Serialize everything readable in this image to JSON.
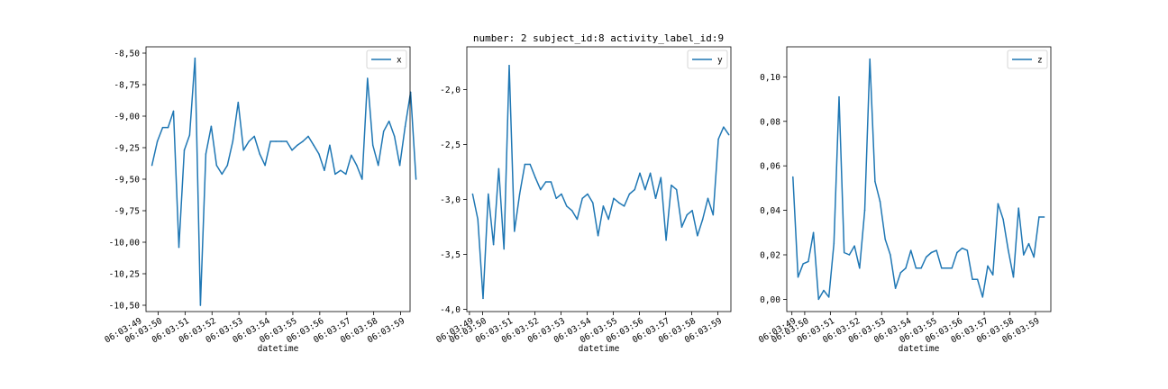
{
  "figure_title": "number: 2 subject_id:8 activity_label_id:9",
  "line_color": "#1f77b4",
  "chart_data": [
    {
      "type": "line",
      "title": "",
      "xlabel": "datetime",
      "ylabel": "",
      "legend": {
        "label": "x",
        "placement": "top-right"
      },
      "grid": false,
      "x_range": [
        "06:03:49.55",
        "06:03:59.35"
      ],
      "xlim": [
        49.55,
        59.35
      ],
      "ylim": [
        -10.55,
        -8.45
      ],
      "xticks": [
        {
          "t": 50,
          "label": "06:03:50"
        },
        {
          "t": 51,
          "label": "06:03:51"
        },
        {
          "t": 52,
          "label": "06:03:52"
        },
        {
          "t": 53,
          "label": "06:03:53"
        },
        {
          "t": 54,
          "label": "06:03:54"
        },
        {
          "t": 55,
          "label": "06:03:55"
        },
        {
          "t": 56,
          "label": "06:03:56"
        },
        {
          "t": 57,
          "label": "06:03:57"
        },
        {
          "t": 58,
          "label": "06:03:58"
        },
        {
          "t": 59,
          "label": "06:03:59"
        }
      ],
      "xtick_prefix_label": "06:03:49",
      "yticks": [
        {
          "v": -8.5,
          "label": "-8,50"
        },
        {
          "v": -8.75,
          "label": "-8,75"
        },
        {
          "v": -9.0,
          "label": "-9,00"
        },
        {
          "v": -9.25,
          "label": "-9,25"
        },
        {
          "v": -9.5,
          "label": "-9,50"
        },
        {
          "v": -9.75,
          "label": "-9,75"
        },
        {
          "v": -10.0,
          "label": "-10,00"
        },
        {
          "v": -10.25,
          "label": "-10,25"
        },
        {
          "v": -10.5,
          "label": "-10,50"
        }
      ],
      "series": [
        {
          "name": "x",
          "points": [
            [
              49.77,
              -9.39
            ],
            [
              49.97,
              -9.2
            ],
            [
              50.17,
              -9.09
            ],
            [
              50.37,
              -9.09
            ],
            [
              50.57,
              -8.96
            ],
            [
              50.77,
              -10.04
            ],
            [
              50.97,
              -9.27
            ],
            [
              51.17,
              -9.15
            ],
            [
              51.37,
              -8.54
            ],
            [
              51.57,
              -10.5
            ],
            [
              51.77,
              -9.3
            ],
            [
              51.97,
              -9.08
            ],
            [
              52.17,
              -9.39
            ],
            [
              52.37,
              -9.46
            ],
            [
              52.57,
              -9.39
            ],
            [
              52.77,
              -9.2
            ],
            [
              52.97,
              -8.89
            ],
            [
              53.17,
              -9.27
            ],
            [
              53.37,
              -9.2
            ],
            [
              53.57,
              -9.16
            ],
            [
              53.77,
              -9.3
            ],
            [
              53.97,
              -9.39
            ],
            [
              54.17,
              -9.2
            ],
            [
              54.37,
              -9.2
            ],
            [
              54.57,
              -9.2
            ],
            [
              54.77,
              -9.2
            ],
            [
              54.97,
              -9.27
            ],
            [
              55.17,
              -9.23
            ],
            [
              55.37,
              -9.2
            ],
            [
              55.57,
              -9.16
            ],
            [
              55.77,
              -9.23
            ],
            [
              55.97,
              -9.3
            ],
            [
              56.17,
              -9.43
            ],
            [
              56.37,
              -9.23
            ],
            [
              56.57,
              -9.46
            ],
            [
              56.77,
              -9.43
            ],
            [
              56.97,
              -9.46
            ],
            [
              57.17,
              -9.31
            ],
            [
              57.37,
              -9.39
            ],
            [
              57.57,
              -9.5
            ],
            [
              57.77,
              -8.7
            ],
            [
              57.97,
              -9.23
            ],
            [
              58.17,
              -9.39
            ],
            [
              58.37,
              -9.12
            ],
            [
              58.57,
              -9.04
            ],
            [
              58.77,
              -9.16
            ],
            [
              58.97,
              -9.39
            ],
            [
              59.17,
              -9.08
            ],
            [
              59.37,
              -8.81
            ],
            [
              59.57,
              -9.5
            ]
          ]
        }
      ]
    },
    {
      "type": "line",
      "title": "number: 2 subject_id:8 activity_label_id:9",
      "xlabel": "datetime",
      "ylabel": "",
      "legend": {
        "label": "y",
        "placement": "top-right"
      },
      "grid": false,
      "x_range": [
        "06:03:49.40",
        "06:03:59.50"
      ],
      "xlim": [
        49.4,
        59.5
      ],
      "ylim": [
        -4.02,
        -1.61
      ],
      "xticks": [
        {
          "t": 49.5,
          "label": "06:03:49"
        },
        {
          "t": 50,
          "label": "06:03:50"
        },
        {
          "t": 51,
          "label": "06:03:51"
        },
        {
          "t": 52,
          "label": "06:03:52"
        },
        {
          "t": 53,
          "label": "06:03:53"
        },
        {
          "t": 54,
          "label": "06:03:54"
        },
        {
          "t": 55,
          "label": "06:03:55"
        },
        {
          "t": 56,
          "label": "06:03:56"
        },
        {
          "t": 57,
          "label": "06:03:57"
        },
        {
          "t": 58,
          "label": "06:03:58"
        },
        {
          "t": 59,
          "label": "06:03:59"
        }
      ],
      "yticks": [
        {
          "v": -2.0,
          "label": "-2,0"
        },
        {
          "v": -2.5,
          "label": "-2,5"
        },
        {
          "v": -3.0,
          "label": "-3,0"
        },
        {
          "v": -3.5,
          "label": "-3,5"
        },
        {
          "v": -4.0,
          "label": "-4,0"
        }
      ],
      "series": [
        {
          "name": "y",
          "points": [
            [
              49.62,
              -2.95
            ],
            [
              49.82,
              -3.18
            ],
            [
              50.02,
              -3.9
            ],
            [
              50.22,
              -2.95
            ],
            [
              50.42,
              -3.41
            ],
            [
              50.62,
              -2.72
            ],
            [
              50.82,
              -3.45
            ],
            [
              51.02,
              -1.78
            ],
            [
              51.22,
              -3.29
            ],
            [
              51.42,
              -2.95
            ],
            [
              51.62,
              -2.68
            ],
            [
              51.82,
              -2.68
            ],
            [
              52.02,
              -2.8
            ],
            [
              52.22,
              -2.91
            ],
            [
              52.42,
              -2.84
            ],
            [
              52.62,
              -2.84
            ],
            [
              52.82,
              -2.99
            ],
            [
              53.02,
              -2.95
            ],
            [
              53.22,
              -3.06
            ],
            [
              53.42,
              -3.1
            ],
            [
              53.62,
              -3.18
            ],
            [
              53.82,
              -2.99
            ],
            [
              54.02,
              -2.95
            ],
            [
              54.22,
              -3.03
            ],
            [
              54.42,
              -3.33
            ],
            [
              54.62,
              -3.06
            ],
            [
              54.82,
              -3.18
            ],
            [
              55.02,
              -2.99
            ],
            [
              55.22,
              -3.03
            ],
            [
              55.42,
              -3.06
            ],
            [
              55.62,
              -2.95
            ],
            [
              55.82,
              -2.91
            ],
            [
              56.02,
              -2.76
            ],
            [
              56.22,
              -2.91
            ],
            [
              56.42,
              -2.76
            ],
            [
              56.62,
              -2.99
            ],
            [
              56.82,
              -2.8
            ],
            [
              57.02,
              -3.37
            ],
            [
              57.22,
              -2.87
            ],
            [
              57.42,
              -2.91
            ],
            [
              57.62,
              -3.25
            ],
            [
              57.82,
              -3.14
            ],
            [
              58.02,
              -3.1
            ],
            [
              58.22,
              -3.33
            ],
            [
              58.42,
              -3.18
            ],
            [
              58.62,
              -2.99
            ],
            [
              58.82,
              -3.14
            ],
            [
              59.02,
              -2.45
            ],
            [
              59.22,
              -2.34
            ],
            [
              59.42,
              -2.41
            ]
          ]
        }
      ]
    },
    {
      "type": "line",
      "title": "",
      "xlabel": "datetime",
      "ylabel": "",
      "legend": {
        "label": "z",
        "placement": "top-right"
      },
      "grid": false,
      "x_range": [
        "06:03:49.30",
        "06:03:59.60"
      ],
      "xlim": [
        49.3,
        59.6
      ],
      "ylim": [
        -0.0055,
        0.1135
      ],
      "xticks": [
        {
          "t": 49.5,
          "label": "06:03:49"
        },
        {
          "t": 50,
          "label": "06:03:50"
        },
        {
          "t": 51,
          "label": "06:03:51"
        },
        {
          "t": 52,
          "label": "06:03:52"
        },
        {
          "t": 53,
          "label": "06:03:53"
        },
        {
          "t": 54,
          "label": "06:03:54"
        },
        {
          "t": 55,
          "label": "06:03:55"
        },
        {
          "t": 56,
          "label": "06:03:56"
        },
        {
          "t": 57,
          "label": "06:03:57"
        },
        {
          "t": 58,
          "label": "06:03:58"
        },
        {
          "t": 59,
          "label": "06:03:59"
        }
      ],
      "yticks": [
        {
          "v": 0.1,
          "label": "0,10"
        },
        {
          "v": 0.08,
          "label": "0,08"
        },
        {
          "v": 0.06,
          "label": "0,06"
        },
        {
          "v": 0.04,
          "label": "0,04"
        },
        {
          "v": 0.02,
          "label": "0,02"
        },
        {
          "v": 0.0,
          "label": "0,00"
        }
      ],
      "series": [
        {
          "name": "z",
          "points": [
            [
              49.54,
              0.055
            ],
            [
              49.74,
              0.01
            ],
            [
              49.94,
              0.016
            ],
            [
              50.14,
              0.017
            ],
            [
              50.34,
              0.03
            ],
            [
              50.54,
              0.0
            ],
            [
              50.74,
              0.004
            ],
            [
              50.94,
              0.001
            ],
            [
              51.14,
              0.025
            ],
            [
              51.34,
              0.091
            ],
            [
              51.54,
              0.021
            ],
            [
              51.74,
              0.02
            ],
            [
              51.94,
              0.024
            ],
            [
              52.14,
              0.014
            ],
            [
              52.34,
              0.04
            ],
            [
              52.54,
              0.108
            ],
            [
              52.74,
              0.053
            ],
            [
              52.94,
              0.044
            ],
            [
              53.14,
              0.027
            ],
            [
              53.34,
              0.02
            ],
            [
              53.54,
              0.005
            ],
            [
              53.74,
              0.012
            ],
            [
              53.94,
              0.014
            ],
            [
              54.14,
              0.022
            ],
            [
              54.34,
              0.014
            ],
            [
              54.54,
              0.014
            ],
            [
              54.74,
              0.019
            ],
            [
              54.94,
              0.021
            ],
            [
              55.14,
              0.022
            ],
            [
              55.34,
              0.014
            ],
            [
              55.54,
              0.014
            ],
            [
              55.74,
              0.014
            ],
            [
              55.94,
              0.021
            ],
            [
              56.14,
              0.023
            ],
            [
              56.34,
              0.022
            ],
            [
              56.54,
              0.009
            ],
            [
              56.74,
              0.009
            ],
            [
              56.94,
              0.001
            ],
            [
              57.14,
              0.015
            ],
            [
              57.34,
              0.011
            ],
            [
              57.54,
              0.043
            ],
            [
              57.74,
              0.036
            ],
            [
              57.94,
              0.022
            ],
            [
              58.14,
              0.01
            ],
            [
              58.34,
              0.041
            ],
            [
              58.54,
              0.02
            ],
            [
              58.74,
              0.025
            ],
            [
              58.94,
              0.019
            ],
            [
              59.14,
              0.037
            ],
            [
              59.34,
              0.037
            ]
          ]
        }
      ]
    }
  ]
}
